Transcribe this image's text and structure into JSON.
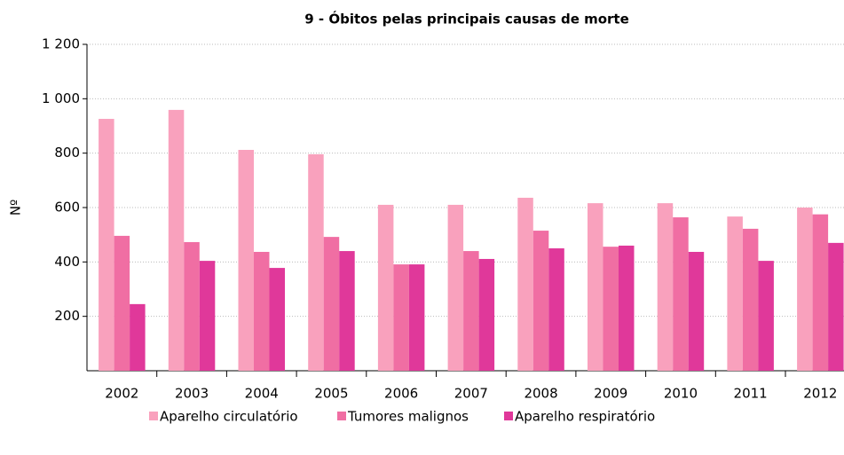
{
  "chart_data": {
    "type": "bar",
    "title": "9 - Óbitos pelas principais causas de morte",
    "y_label": "Nº",
    "categories": [
      "2002",
      "2003",
      "2004",
      "2005",
      "2006",
      "2007",
      "2008",
      "2009",
      "2010",
      "2011",
      "2012"
    ],
    "series": [
      {
        "name": "Aparelho circulatório",
        "color": "#f9a1bd",
        "values": [
          926,
          959,
          812,
          796,
          610,
          610,
          636,
          616,
          616,
          567,
          600
        ]
      },
      {
        "name": "Tumores malignos",
        "color": "#f06ea3",
        "values": [
          496,
          473,
          437,
          492,
          391,
          440,
          515,
          456,
          564,
          522,
          575
        ]
      },
      {
        "name": "Aparelho respiratório",
        "color": "#e0389a",
        "values": [
          245,
          404,
          378,
          440,
          391,
          411,
          450,
          460,
          437,
          404,
          470
        ]
      }
    ],
    "ylim": [
      0,
      1200
    ],
    "yticks": [
      {
        "value": 200,
        "label": "200"
      },
      {
        "value": 400,
        "label": "400"
      },
      {
        "value": 600,
        "label": "600"
      },
      {
        "value": 800,
        "label": "800"
      },
      {
        "value": 1000,
        "label": "1 000"
      },
      {
        "value": 1200,
        "label": "1 200"
      }
    ],
    "grid": true,
    "legend": "bottom"
  }
}
